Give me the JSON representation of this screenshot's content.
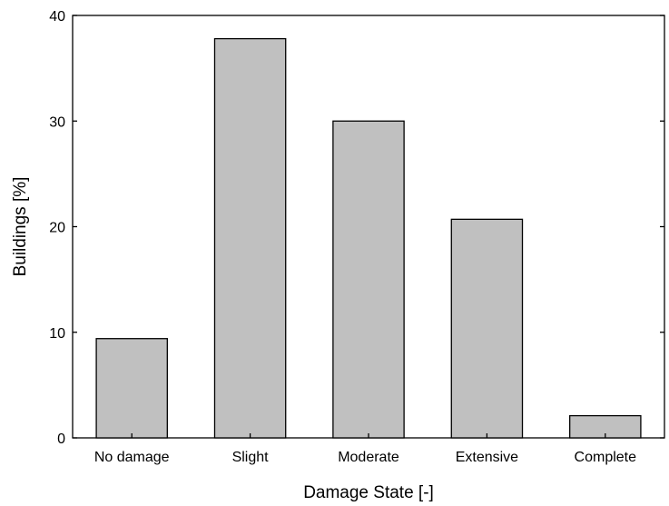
{
  "chart_data": {
    "type": "bar",
    "categories": [
      "No damage",
      "Slight",
      "Moderate",
      "Extensive",
      "Complete"
    ],
    "values": [
      9.4,
      37.8,
      30.0,
      20.7,
      2.1
    ],
    "title": "",
    "xlabel": "Damage State [-]",
    "ylabel": "Buildings [%]",
    "ylim": [
      0,
      40
    ],
    "yticks": [
      0,
      10,
      20,
      30,
      40
    ],
    "grid": false,
    "colors": {
      "bar_fill": "#c0c0c0",
      "bar_edge": "#000000",
      "axis": "#000000"
    }
  }
}
